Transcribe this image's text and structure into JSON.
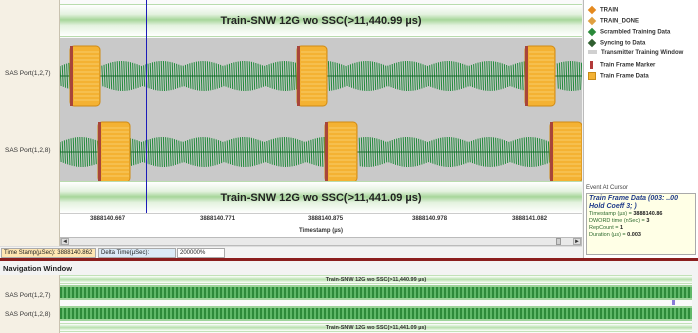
{
  "channels": [
    {
      "label": "SAS Port(1,2,7)"
    },
    {
      "label": "SAS Port(1,2,8)"
    }
  ],
  "banner_top": "Train-SNW 12G wo SSC(>11,440.99 µs)",
  "banner_bottom": "Train-SNW 12G wo SSC(>11,441.09 µs)",
  "time_axis": {
    "ticks": [
      "3888140.667",
      "3888140.771",
      "3888140.875",
      "3888140.978",
      "3888141.082"
    ],
    "caption": "Timestamp (µs)"
  },
  "legend": [
    {
      "label": "TRAIN",
      "color": "#e58a1f",
      "icon": "diamond-icon"
    },
    {
      "label": "TRAIN_DONE",
      "color": "#e0a040",
      "icon": "diamond-icon"
    },
    {
      "label": "Scrambled Training Data",
      "color": "#2a8a3a",
      "icon": "diamond-icon"
    },
    {
      "label": "Syncing to Data",
      "color": "#2f5e2f",
      "icon": "diamond-icon"
    },
    {
      "label": "Transmitter Training Window",
      "color": "#d0d0d0",
      "icon": "bar-icon"
    },
    {
      "label": "Train Frame Marker",
      "color": "#b23a3a",
      "icon": "marker-icon"
    },
    {
      "label": "Train Frame Data",
      "color": "#f4b233",
      "icon": "square-icon"
    }
  ],
  "event_panel": {
    "title": "Event At Cursor",
    "header_line1": "Train Frame Data (003: ..00",
    "header_line2": "Hold Coeff 3; )",
    "rows": [
      {
        "key": "Timestamp (µs) = ",
        "value": "3888140.86"
      },
      {
        "key": "DWORD time (nSec) = ",
        "value": "3"
      },
      {
        "key": "RepCount = ",
        "value": "1"
      },
      {
        "key": "Duration (µs) = ",
        "value": "0.003"
      }
    ]
  },
  "status": {
    "timestamp": "Time Stamp(µSec): 3888140.862",
    "delta": "Delta Time(µSec):",
    "zoom": "200000%"
  },
  "nav": {
    "title": "Navigation Window",
    "banner_top": "Train-SNW 12G wo SSC(>11,440.99 µs)",
    "banner_bottom": "Train-SNW 12G wo SSC(>11,441.09 µs)"
  },
  "scroll": {
    "left_arrow": "◄",
    "right_arrow": "►"
  }
}
